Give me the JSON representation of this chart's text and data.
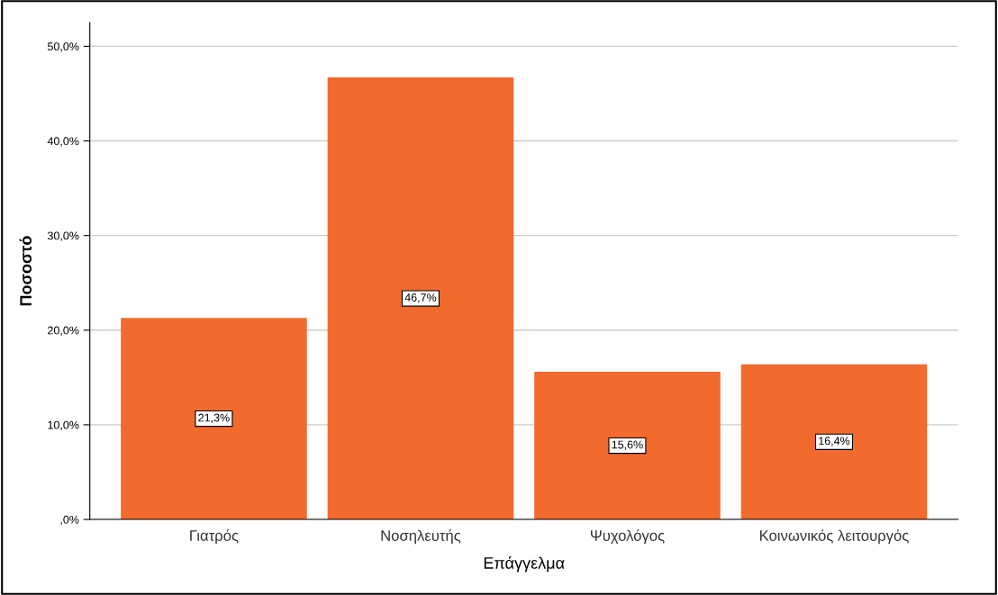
{
  "chart_data": {
    "type": "bar",
    "xlabel": "Επάγγελμα",
    "ylabel": "Ποσοστό",
    "categories": [
      "Γιατρός",
      "Νοσηλευτής",
      "Ψυχολόγος",
      "Κοινωνικός λειτουργός"
    ],
    "values": [
      21.3,
      46.7,
      15.6,
      16.4
    ],
    "color": "#f26a2e",
    "value_labels": [
      "21,3%",
      "46,7%",
      "15,6%",
      "16,4%"
    ],
    "ylim": [
      0,
      52.5
    ],
    "yticks": [
      {
        "value": 0,
        "label": ",0%"
      },
      {
        "value": 10,
        "label": "10,0%"
      },
      {
        "value": 20,
        "label": "20,0%"
      },
      {
        "value": 30,
        "label": "30,0%"
      },
      {
        "value": 40,
        "label": "40,0%"
      },
      {
        "value": 50,
        "label": "50,0%"
      }
    ],
    "grid": "y"
  }
}
